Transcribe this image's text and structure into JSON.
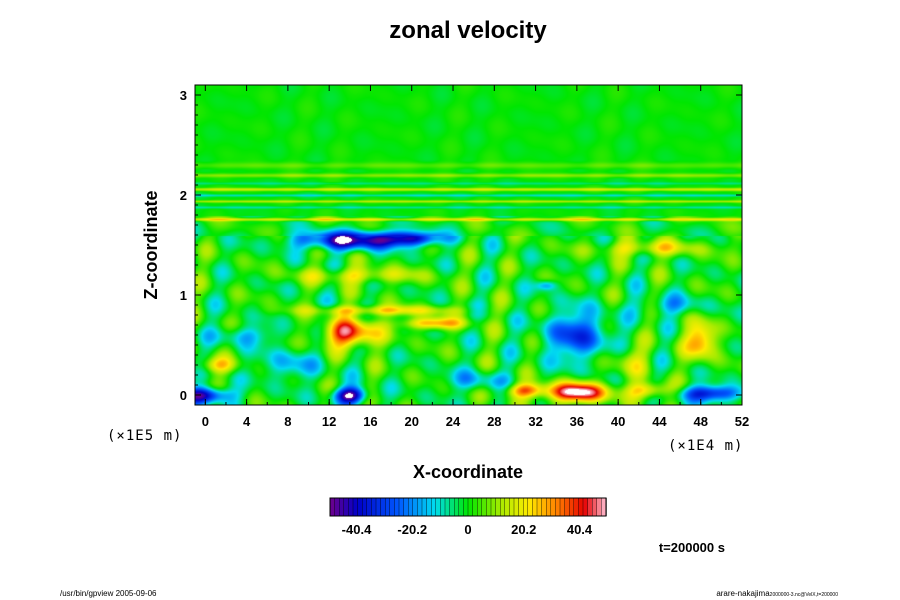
{
  "chart_data": {
    "type": "heatmap",
    "title": "zonal velocity",
    "xlabel": "X-coordinate",
    "ylabel": "Z-coordinate",
    "x_unit": "(×1E4 m)",
    "y_unit": "(×1E5 m)",
    "xlim": [
      -1,
      52
    ],
    "ylim": [
      -0.1,
      3.1
    ],
    "x_ticks": [
      "0",
      "4",
      "8",
      "12",
      "16",
      "20",
      "24",
      "28",
      "32",
      "36",
      "40",
      "44",
      "48",
      "52"
    ],
    "y_ticks": [
      "0",
      "1",
      "2",
      "3"
    ],
    "colorbar": {
      "range": [
        -50,
        50
      ],
      "ticks": [
        "-40.4",
        "-20.2",
        "0",
        "20.2",
        "40.4"
      ]
    },
    "time_label": "t=200000 s",
    "features": [
      {
        "x": 14,
        "z": 1.55,
        "value": -45,
        "sx": 5,
        "sz": 0.09
      },
      {
        "x": 20,
        "z": 1.57,
        "value": -35,
        "sx": 3,
        "sz": 0.07
      },
      {
        "x": 36,
        "z": 0.6,
        "value": -30,
        "sx": 3,
        "sz": 0.25
      },
      {
        "x": 14,
        "z": 0.62,
        "value": 42,
        "sx": 2.6,
        "sz": 0.14
      },
      {
        "x": 22,
        "z": 0.72,
        "value": 30,
        "sx": 3,
        "sz": 0.06
      },
      {
        "x": 17,
        "z": 0.85,
        "value": 22,
        "sx": 7,
        "sz": 0.05
      },
      {
        "x": 48,
        "z": 0.55,
        "value": 32,
        "sx": 1.6,
        "sz": 0.18
      },
      {
        "x": 43,
        "z": 1.47,
        "value": 20,
        "sx": 5,
        "sz": 0.08
      },
      {
        "x": 15,
        "z": 1.2,
        "value": 18,
        "sx": 6,
        "sz": 0.08
      },
      {
        "x": 36,
        "z": 0.03,
        "value": 52,
        "sx": 3,
        "sz": 0.1
      },
      {
        "x": 31,
        "z": 0.05,
        "value": 30,
        "sx": 2,
        "sz": 0.07
      },
      {
        "x": 14,
        "z": 0.0,
        "value": -48,
        "sx": 1.6,
        "sz": 0.08
      },
      {
        "x": 0,
        "z": 0.0,
        "value": -42,
        "sx": 2.4,
        "sz": 0.08
      },
      {
        "x": 49,
        "z": 0.02,
        "value": -38,
        "sx": 3,
        "sz": 0.08
      },
      {
        "x": 43,
        "z": 0.05,
        "value": 28,
        "sx": 2,
        "sz": 0.08
      },
      {
        "x": 8,
        "z": 0.3,
        "value": -15,
        "sx": 3,
        "sz": 0.15
      },
      {
        "x": 1,
        "z": 0.3,
        "value": 20,
        "sx": 2,
        "sz": 0.08
      },
      {
        "x": 4,
        "z": 0.6,
        "value": -15,
        "sx": 3,
        "sz": 0.1
      },
      {
        "x": 26,
        "z": 0.15,
        "value": -15,
        "sx": 3,
        "sz": 0.1
      },
      {
        "x": 41,
        "z": 0.35,
        "value": 15,
        "sx": 2,
        "sz": 0.15
      },
      {
        "x": 33,
        "z": 1.1,
        "value": -20,
        "sx": 1,
        "sz": 0.05
      },
      {
        "x": 45,
        "z": 0.9,
        "value": -15,
        "sx": 3,
        "sz": 0.1
      }
    ],
    "bands": [
      {
        "z": 1.76,
        "value": 18,
        "sz": 0.015
      },
      {
        "z": 1.88,
        "value": -8,
        "sz": 0.012
      },
      {
        "z": 1.94,
        "value": 14,
        "sz": 0.012
      },
      {
        "z": 2.0,
        "value": -10,
        "sz": 0.012
      },
      {
        "z": 2.06,
        "value": 16,
        "sz": 0.015
      },
      {
        "z": 2.12,
        "value": -6,
        "sz": 0.012
      },
      {
        "z": 2.2,
        "value": 10,
        "sz": 0.02
      },
      {
        "z": 2.3,
        "value": 6,
        "sz": 0.03
      }
    ]
  },
  "footer": {
    "left": "/usr/bin/gpview 2005-09-06",
    "right_main": "arare-nakajima",
    "right_sub": "2000000-3.nc@VelX,t=200000"
  }
}
